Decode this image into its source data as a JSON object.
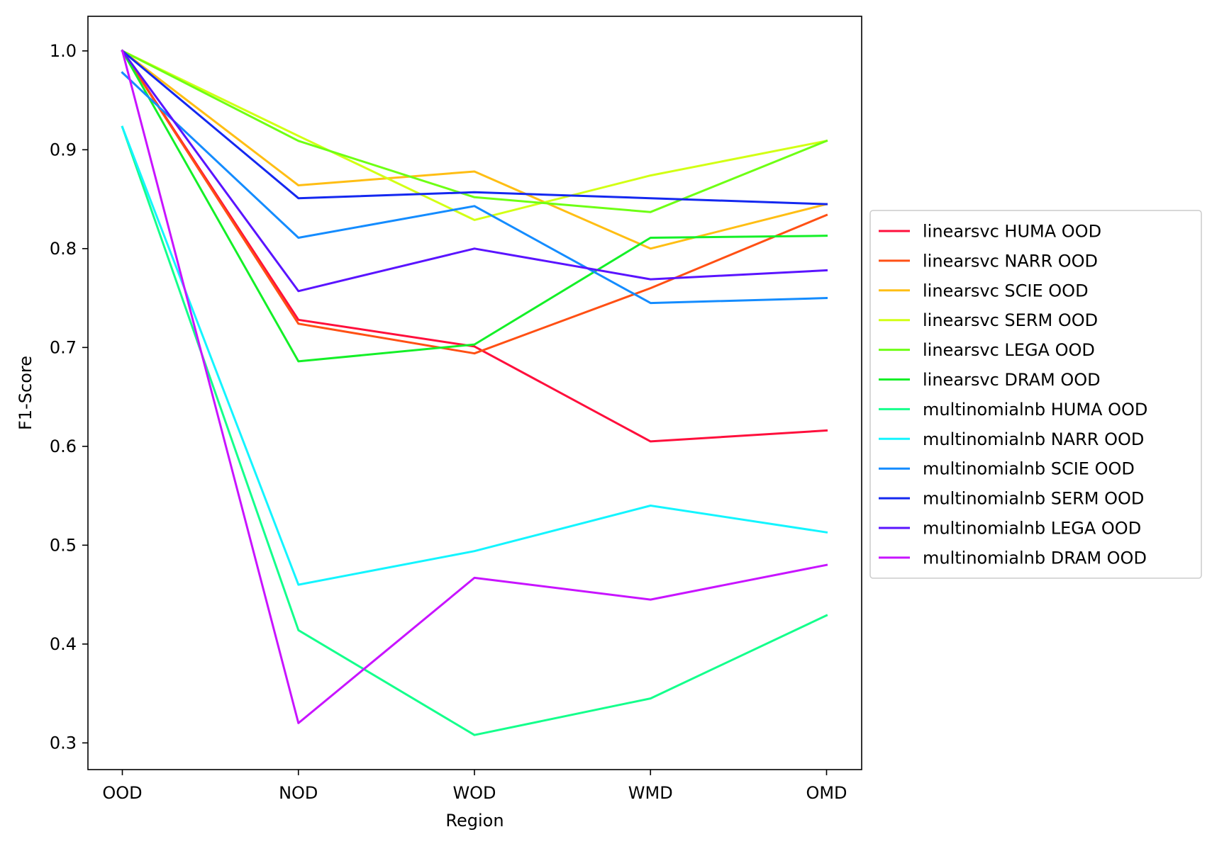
{
  "chart_data": {
    "type": "line",
    "title": "",
    "xlabel": "Region",
    "ylabel": "F1-Score",
    "categories": [
      "OOD",
      "NOD",
      "WOD",
      "WMD",
      "OMD"
    ],
    "ylim": [
      0.273,
      1.035
    ],
    "yticks": [
      0.3,
      0.4,
      0.5,
      0.6,
      0.7,
      0.8,
      0.9,
      1.0
    ],
    "ytick_labels": [
      "0.3",
      "0.4",
      "0.5",
      "0.6",
      "0.7",
      "0.8",
      "0.9",
      "1.0"
    ],
    "grid": false,
    "legend_position": "center-right, outside plot",
    "series": [
      {
        "name": "linearsvc HUMA OOD",
        "color": "#ff0f3c",
        "values": [
          1.0,
          0.728,
          0.701,
          0.605,
          0.616
        ]
      },
      {
        "name": "linearsvc NARR OOD",
        "color": "#ff5014",
        "values": [
          1.0,
          0.724,
          0.694,
          0.76,
          0.834
        ]
      },
      {
        "name": "linearsvc SCIE OOD",
        "color": "#ffbe14",
        "values": [
          1.0,
          0.864,
          0.878,
          0.8,
          0.845
        ]
      },
      {
        "name": "linearsvc SERM OOD",
        "color": "#d2ff14",
        "values": [
          1.0,
          0.914,
          0.829,
          0.874,
          0.909
        ]
      },
      {
        "name": "linearsvc LEGA OOD",
        "color": "#6eff14",
        "values": [
          1.0,
          0.909,
          0.852,
          0.837,
          0.909
        ]
      },
      {
        "name": "linearsvc DRAM OOD",
        "color": "#14f028",
        "values": [
          1.0,
          0.686,
          0.703,
          0.811,
          0.813
        ]
      },
      {
        "name": "multinomialnb HUMA OOD",
        "color": "#14ff8c",
        "values": [
          0.923,
          0.414,
          0.308,
          0.345,
          0.429
        ]
      },
      {
        "name": "multinomialnb NARR OOD",
        "color": "#14f5ff",
        "values": [
          0.923,
          0.46,
          0.494,
          0.54,
          0.513
        ]
      },
      {
        "name": "multinomialnb SCIE OOD",
        "color": "#148cff",
        "values": [
          0.978,
          0.811,
          0.843,
          0.745,
          0.75
        ]
      },
      {
        "name": "multinomialnb SERM OOD",
        "color": "#1428f0",
        "values": [
          1.0,
          0.851,
          0.857,
          0.851,
          0.845
        ]
      },
      {
        "name": "multinomialnb LEGA OOD",
        "color": "#5a14ff",
        "values": [
          1.0,
          0.757,
          0.8,
          0.769,
          0.778
        ]
      },
      {
        "name": "multinomialnb DRAM OOD",
        "color": "#c814ff",
        "values": [
          1.0,
          0.32,
          0.467,
          0.445,
          0.48
        ]
      }
    ]
  }
}
